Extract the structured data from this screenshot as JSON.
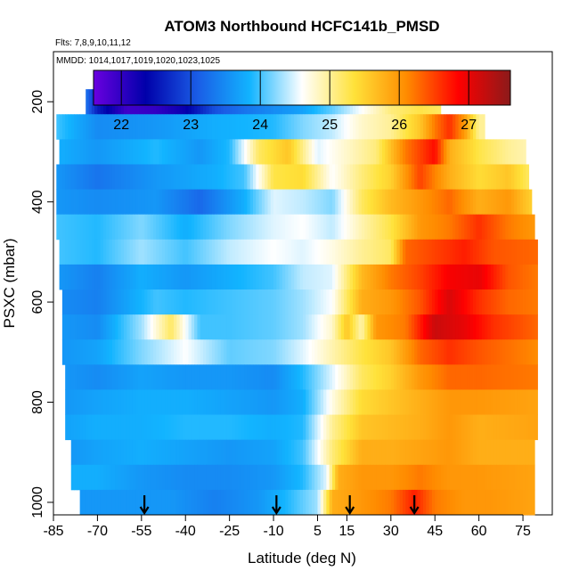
{
  "chart_data": {
    "type": "heatmap",
    "title": "ATOM3 Northbound HCFC141b_PMSD",
    "flights_note": "Flts: 7,8,9,10,11,12",
    "dates_note": "MMDD: 1014,1017,1019,1020,1023,1025",
    "xlabel": "Latitude (deg N)",
    "ylabel": "PSXC (mbar)",
    "xlim": [
      -85,
      85
    ],
    "ylim": [
      1025,
      100
    ],
    "x_ticks": [
      -85,
      -70,
      -55,
      -40,
      -25,
      -10,
      5,
      15,
      30,
      45,
      60,
      75
    ],
    "y_ticks": [
      200,
      400,
      600,
      800,
      1000
    ],
    "colorbar": {
      "min": 21.6,
      "max": 27.6,
      "ticks": [
        22,
        23,
        24,
        25,
        26,
        27
      ],
      "colors": [
        "#6a00e0",
        "#0000aa",
        "#1a5de6",
        "#12b4ff",
        "#ffffff",
        "#ffe23a",
        "#ff8c00",
        "#ff0000",
        "#8b1a1a"
      ]
    },
    "arrow_latitudes": [
      -54,
      -9,
      16,
      38
    ],
    "rows": [
      {
        "p": 200,
        "lat_min": -74,
        "lat_max": 47,
        "anchors": [
          [
            -74,
            23.3
          ],
          [
            -70,
            22.6
          ],
          [
            -60,
            21.9
          ],
          [
            -50,
            22.0
          ],
          [
            -40,
            22.3
          ],
          [
            -30,
            23.0
          ],
          [
            -20,
            23.3
          ],
          [
            -10,
            23.5
          ],
          [
            0,
            23.7
          ],
          [
            10,
            24.1
          ],
          [
            20,
            24.6
          ],
          [
            30,
            25.1
          ],
          [
            40,
            25.3
          ],
          [
            47,
            25.2
          ]
        ]
      },
      {
        "p": 250,
        "lat_min": -84,
        "lat_max": 62,
        "anchors": [
          [
            -84,
            24.0
          ],
          [
            -70,
            23.5
          ],
          [
            -50,
            23.6
          ],
          [
            -30,
            23.8
          ],
          [
            -10,
            23.9
          ],
          [
            0,
            24.2
          ],
          [
            10,
            24.4
          ],
          [
            20,
            24.8
          ],
          [
            30,
            25.0
          ],
          [
            40,
            25.6
          ],
          [
            45,
            26.2
          ],
          [
            50,
            26.6
          ],
          [
            55,
            26.0
          ],
          [
            60,
            25.0
          ]
        ]
      },
      {
        "p": 300,
        "lat_min": -83,
        "lat_max": 76,
        "anchors": [
          [
            -83,
            23.8
          ],
          [
            -70,
            23.6
          ],
          [
            -50,
            23.9
          ],
          [
            -35,
            23.6
          ],
          [
            -25,
            23.9
          ],
          [
            -15,
            25.2
          ],
          [
            -5,
            25.6
          ],
          [
            5,
            24.5
          ],
          [
            15,
            24.8
          ],
          [
            25,
            25.1
          ],
          [
            35,
            26.2
          ],
          [
            45,
            26.8
          ],
          [
            50,
            25.8
          ],
          [
            60,
            25.3
          ],
          [
            70,
            25.0
          ],
          [
            76,
            24.9
          ]
        ]
      },
      {
        "p": 350,
        "lat_min": -84,
        "lat_max": 77,
        "anchors": [
          [
            -84,
            23.6
          ],
          [
            -70,
            23.3
          ],
          [
            -50,
            23.6
          ],
          [
            -30,
            23.8
          ],
          [
            -20,
            24.0
          ],
          [
            -10,
            25.3
          ],
          [
            0,
            25.4
          ],
          [
            10,
            24.6
          ],
          [
            20,
            25.1
          ],
          [
            30,
            25.5
          ],
          [
            40,
            26.5
          ],
          [
            50,
            25.8
          ],
          [
            60,
            25.4
          ],
          [
            70,
            25.6
          ],
          [
            77,
            25.2
          ]
        ]
      },
      {
        "p": 400,
        "lat_min": -84,
        "lat_max": 78,
        "anchors": [
          [
            -84,
            23.6
          ],
          [
            -70,
            23.5
          ],
          [
            -50,
            23.6
          ],
          [
            -35,
            23.2
          ],
          [
            -20,
            23.8
          ],
          [
            -10,
            24.5
          ],
          [
            0,
            24.4
          ],
          [
            10,
            24.2
          ],
          [
            20,
            25.2
          ],
          [
            30,
            25.7
          ],
          [
            40,
            26.0
          ],
          [
            50,
            26.3
          ],
          [
            60,
            25.8
          ],
          [
            70,
            26.0
          ],
          [
            78,
            25.5
          ]
        ]
      },
      {
        "p": 450,
        "lat_min": -84,
        "lat_max": 79,
        "anchors": [
          [
            -84,
            24.0
          ],
          [
            -70,
            23.9
          ],
          [
            -55,
            24.2
          ],
          [
            -40,
            23.8
          ],
          [
            -25,
            24.2
          ],
          [
            -10,
            24.5
          ],
          [
            0,
            24.6
          ],
          [
            10,
            24.4
          ],
          [
            20,
            24.9
          ],
          [
            30,
            25.3
          ],
          [
            40,
            26.0
          ],
          [
            50,
            26.2
          ],
          [
            60,
            26.6
          ],
          [
            70,
            26.2
          ],
          [
            79,
            26.0
          ]
        ]
      },
      {
        "p": 500,
        "lat_min": -83,
        "lat_max": 80,
        "anchors": [
          [
            -83,
            24.0
          ],
          [
            -70,
            23.9
          ],
          [
            -55,
            24.3
          ],
          [
            -40,
            24.0
          ],
          [
            -25,
            24.4
          ],
          [
            -10,
            24.6
          ],
          [
            0,
            24.5
          ],
          [
            10,
            24.7
          ],
          [
            20,
            25.0
          ],
          [
            30,
            25.2
          ],
          [
            35,
            26.3
          ],
          [
            45,
            26.5
          ],
          [
            55,
            26.7
          ],
          [
            65,
            26.4
          ],
          [
            80,
            26.3
          ]
        ]
      },
      {
        "p": 550,
        "lat_min": -83,
        "lat_max": 80,
        "anchors": [
          [
            -83,
            23.6
          ],
          [
            -70,
            23.4
          ],
          [
            -55,
            23.8
          ],
          [
            -40,
            23.6
          ],
          [
            -25,
            23.8
          ],
          [
            -10,
            24.0
          ],
          [
            0,
            24.4
          ],
          [
            10,
            24.5
          ],
          [
            20,
            25.7
          ],
          [
            30,
            26.2
          ],
          [
            40,
            26.5
          ],
          [
            50,
            26.9
          ],
          [
            60,
            27.0
          ],
          [
            70,
            26.4
          ],
          [
            80,
            26.2
          ]
        ]
      },
      {
        "p": 600,
        "lat_min": -82,
        "lat_max": 80,
        "anchors": [
          [
            -82,
            23.5
          ],
          [
            -70,
            23.4
          ],
          [
            -50,
            24.0
          ],
          [
            -40,
            23.9
          ],
          [
            -25,
            24.0
          ],
          [
            -10,
            24.1
          ],
          [
            0,
            24.3
          ],
          [
            10,
            24.6
          ],
          [
            20,
            25.8
          ],
          [
            30,
            26.0
          ],
          [
            40,
            26.4
          ],
          [
            50,
            27.1
          ],
          [
            60,
            26.6
          ],
          [
            70,
            26.3
          ],
          [
            80,
            26.2
          ]
        ]
      },
      {
        "p": 650,
        "lat_min": -82,
        "lat_max": 80,
        "anchors": [
          [
            -82,
            23.6
          ],
          [
            -70,
            23.5
          ],
          [
            -55,
            24.3
          ],
          [
            -45,
            25.2
          ],
          [
            -35,
            24.0
          ],
          [
            -25,
            24.0
          ],
          [
            -10,
            24.1
          ],
          [
            0,
            24.3
          ],
          [
            10,
            24.8
          ],
          [
            15,
            25.6
          ],
          [
            20,
            24.9
          ],
          [
            25,
            26.0
          ],
          [
            35,
            26.2
          ],
          [
            45,
            27.2
          ],
          [
            55,
            27.0
          ],
          [
            65,
            26.6
          ],
          [
            80,
            26.3
          ]
        ]
      },
      {
        "p": 700,
        "lat_min": -82,
        "lat_max": 80,
        "anchors": [
          [
            -82,
            23.6
          ],
          [
            -70,
            23.7
          ],
          [
            -55,
            24.2
          ],
          [
            -40,
            24.6
          ],
          [
            -25,
            24.1
          ],
          [
            -10,
            24.2
          ],
          [
            0,
            24.5
          ],
          [
            10,
            24.9
          ],
          [
            20,
            25.3
          ],
          [
            30,
            25.6
          ],
          [
            40,
            26.3
          ],
          [
            50,
            26.6
          ],
          [
            60,
            26.4
          ],
          [
            80,
            26.1
          ]
        ]
      },
      {
        "p": 750,
        "lat_min": -81,
        "lat_max": 80,
        "anchors": [
          [
            -81,
            23.6
          ],
          [
            -70,
            23.5
          ],
          [
            -55,
            23.7
          ],
          [
            -40,
            23.6
          ],
          [
            -25,
            23.6
          ],
          [
            -10,
            23.5
          ],
          [
            0,
            23.9
          ],
          [
            10,
            24.5
          ],
          [
            20,
            25.2
          ],
          [
            30,
            25.5
          ],
          [
            40,
            26.0
          ],
          [
            50,
            26.3
          ],
          [
            60,
            26.3
          ],
          [
            80,
            26.2
          ]
        ]
      },
      {
        "p": 800,
        "lat_min": -81,
        "lat_max": 80,
        "anchors": [
          [
            -81,
            23.6
          ],
          [
            -70,
            23.7
          ],
          [
            -55,
            23.8
          ],
          [
            -40,
            23.8
          ],
          [
            -25,
            23.7
          ],
          [
            -10,
            23.6
          ],
          [
            0,
            23.8
          ],
          [
            10,
            24.7
          ],
          [
            20,
            25.4
          ],
          [
            30,
            25.6
          ],
          [
            40,
            25.8
          ],
          [
            50,
            26.0
          ],
          [
            60,
            26.0
          ],
          [
            80,
            25.9
          ]
        ]
      },
      {
        "p": 850,
        "lat_min": -81,
        "lat_max": 80,
        "anchors": [
          [
            -81,
            23.7
          ],
          [
            -70,
            23.8
          ],
          [
            -55,
            23.8
          ],
          [
            -40,
            23.9
          ],
          [
            -25,
            23.9
          ],
          [
            -10,
            23.8
          ],
          [
            0,
            23.9
          ],
          [
            10,
            25.0
          ],
          [
            20,
            25.6
          ],
          [
            30,
            25.7
          ],
          [
            40,
            25.8
          ],
          [
            50,
            26.0
          ],
          [
            60,
            25.8
          ],
          [
            80,
            25.9
          ]
        ]
      },
      {
        "p": 900,
        "lat_min": -79,
        "lat_max": 79,
        "anchors": [
          [
            -79,
            23.6
          ],
          [
            -70,
            23.7
          ],
          [
            -55,
            23.8
          ],
          [
            -40,
            23.7
          ],
          [
            -25,
            23.6
          ],
          [
            -10,
            23.7
          ],
          [
            0,
            24.0
          ],
          [
            10,
            25.1
          ],
          [
            20,
            25.8
          ],
          [
            30,
            25.8
          ],
          [
            40,
            25.9
          ],
          [
            50,
            26.0
          ],
          [
            60,
            25.8
          ],
          [
            79,
            25.8
          ]
        ]
      },
      {
        "p": 950,
        "lat_min": -79,
        "lat_max": 79,
        "anchors": [
          [
            -79,
            23.8
          ],
          [
            -70,
            23.8
          ],
          [
            -55,
            23.6
          ],
          [
            -40,
            23.5
          ],
          [
            -25,
            23.5
          ],
          [
            -10,
            23.6
          ],
          [
            0,
            23.9
          ],
          [
            8,
            24.5
          ],
          [
            12,
            25.8
          ],
          [
            20,
            26.0
          ],
          [
            30,
            26.0
          ],
          [
            40,
            26.2
          ],
          [
            50,
            26.0
          ],
          [
            60,
            26.0
          ],
          [
            79,
            25.9
          ]
        ]
      },
      {
        "p": 1000,
        "lat_min": -76,
        "lat_max": 79,
        "anchors": [
          [
            -76,
            23.6
          ],
          [
            -60,
            23.6
          ],
          [
            -45,
            23.6
          ],
          [
            -30,
            23.4
          ],
          [
            -15,
            23.6
          ],
          [
            -5,
            23.9
          ],
          [
            5,
            24.3
          ],
          [
            10,
            25.8
          ],
          [
            20,
            26.0
          ],
          [
            30,
            26.2
          ],
          [
            38,
            26.7
          ],
          [
            45,
            26.2
          ],
          [
            55,
            26.0
          ],
          [
            65,
            26.0
          ],
          [
            79,
            25.9
          ]
        ]
      }
    ]
  }
}
